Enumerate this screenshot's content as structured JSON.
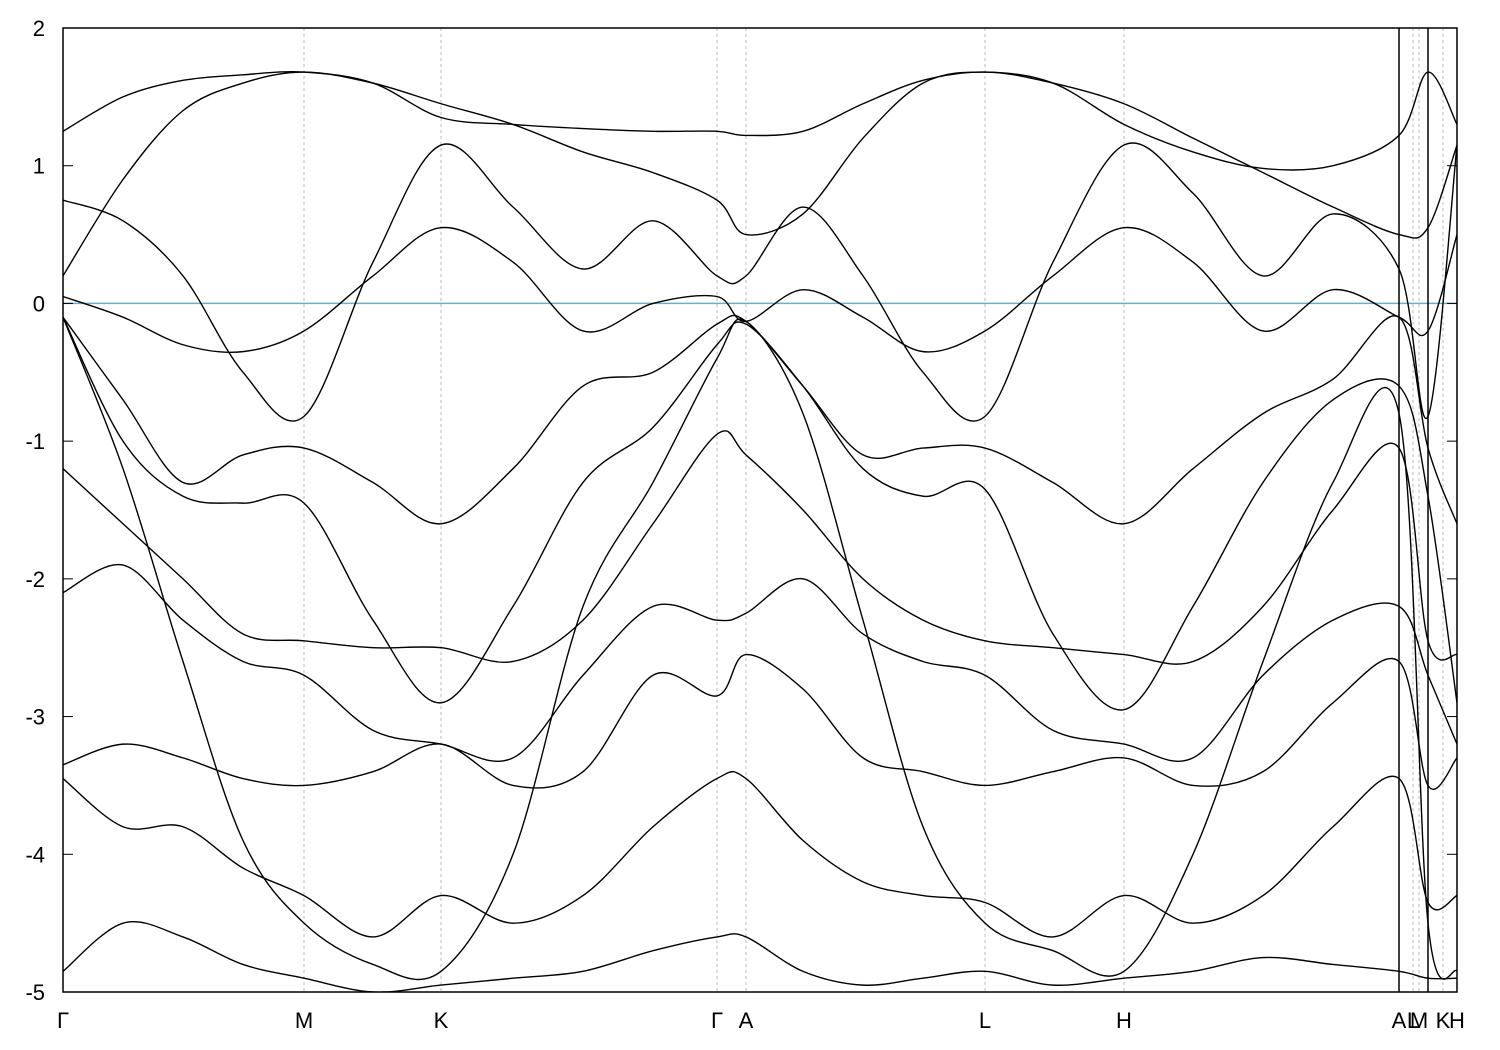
{
  "chart_data": {
    "type": "line",
    "xlim": [
      0,
      13.94
    ],
    "ylim": [
      -5,
      2
    ],
    "yticks": [
      -5,
      -4,
      -3,
      -2,
      -1,
      0,
      1,
      2
    ],
    "xticks": [
      {
        "value": 0,
        "label": "Γ"
      },
      {
        "value": 2.41,
        "label": "M"
      },
      {
        "value": 3.78,
        "label": "K"
      },
      {
        "value": 6.54,
        "label": "Γ"
      },
      {
        "value": 6.83,
        "label": "A"
      },
      {
        "value": 9.22,
        "label": "L"
      },
      {
        "value": 10.61,
        "label": "H"
      },
      {
        "value": 13.36,
        "label": "A"
      },
      {
        "value": 13.5,
        "label": "L"
      },
      {
        "value": 13.56,
        "label": "M"
      },
      {
        "value": 13.8,
        "label": "K"
      },
      {
        "value": 13.94,
        "label": "H"
      }
    ],
    "panel_breaks": [
      13.36,
      13.65
    ],
    "xgrid": true,
    "fermi_level": 0,
    "fermi_color": "#6aaec8",
    "x": [
      0,
      0.6,
      1.2,
      1.8,
      2.41,
      3.1,
      3.78,
      4.5,
      5.2,
      5.9,
      6.54,
      6.83,
      7.4,
      8.0,
      8.6,
      9.22,
      9.9,
      10.61,
      11.3,
      12.0,
      12.7,
      13.36,
      13.65,
      13.94
    ],
    "series": [
      {
        "color": "#000000",
        "values": [
          1.25,
          1.5,
          1.62,
          1.66,
          1.68,
          1.6,
          1.35,
          1.3,
          1.27,
          1.25,
          1.25,
          1.22,
          1.25,
          1.45,
          1.62,
          1.68,
          1.6,
          1.3,
          1.1,
          0.98,
          1.0,
          1.22,
          1.68,
          1.3
        ]
      },
      {
        "color": "#000000",
        "values": [
          0.2,
          0.9,
          1.4,
          1.6,
          1.68,
          1.6,
          1.45,
          1.3,
          1.1,
          0.95,
          0.75,
          0.5,
          0.65,
          1.2,
          1.6,
          1.68,
          1.6,
          1.45,
          1.2,
          0.95,
          0.7,
          0.5,
          0.55,
          1.15
        ]
      },
      {
        "color": "#000000",
        "values": [
          0.75,
          0.6,
          0.2,
          -0.5,
          -0.82,
          0.3,
          1.15,
          0.7,
          0.25,
          0.6,
          0.2,
          0.2,
          0.7,
          0.2,
          -0.5,
          -0.82,
          0.3,
          1.15,
          0.8,
          0.2,
          0.65,
          0.25,
          -0.82,
          1.15
        ]
      },
      {
        "color": "#000000",
        "values": [
          0.05,
          -0.1,
          -0.3,
          -0.35,
          -0.2,
          0.2,
          0.55,
          0.3,
          -0.2,
          0.0,
          0.05,
          -0.13,
          0.1,
          -0.1,
          -0.35,
          -0.2,
          0.2,
          0.55,
          0.3,
          -0.2,
          0.1,
          -0.1,
          -0.2,
          0.5
        ]
      },
      {
        "color": "#000000",
        "values": [
          -0.1,
          -0.7,
          -1.3,
          -1.1,
          -1.05,
          -1.3,
          -1.6,
          -1.2,
          -0.6,
          -0.5,
          -0.15,
          -0.13,
          -0.6,
          -1.1,
          -1.05,
          -1.05,
          -1.3,
          -1.6,
          -1.2,
          -0.8,
          -0.55,
          -0.1,
          -1.05,
          -1.6
        ]
      },
      {
        "color": "#000000",
        "values": [
          -0.1,
          -1.0,
          -1.4,
          -1.45,
          -1.45,
          -2.3,
          -2.9,
          -2.2,
          -1.3,
          -0.9,
          -0.3,
          -0.15,
          -0.6,
          -1.2,
          -1.4,
          -1.35,
          -2.4,
          -2.95,
          -2.2,
          -1.3,
          -0.7,
          -0.6,
          -1.4,
          -2.9
        ]
      },
      {
        "color": "#000000",
        "values": [
          -1.2,
          -1.6,
          -2.0,
          -2.4,
          -2.45,
          -2.5,
          -2.5,
          -2.6,
          -2.3,
          -1.6,
          -0.95,
          -1.1,
          -1.5,
          -2.0,
          -2.3,
          -2.45,
          -2.5,
          -2.55,
          -2.6,
          -2.2,
          -1.5,
          -1.05,
          -2.45,
          -2.55
        ]
      },
      {
        "color": "#000000",
        "values": [
          -2.1,
          -1.9,
          -2.3,
          -2.6,
          -2.7,
          -3.1,
          -3.2,
          -3.3,
          -2.7,
          -2.2,
          -2.3,
          -2.25,
          -2.0,
          -2.4,
          -2.6,
          -2.7,
          -3.1,
          -3.2,
          -3.3,
          -2.7,
          -2.3,
          -2.2,
          -2.7,
          -3.2
        ]
      },
      {
        "color": "#000000",
        "values": [
          -3.35,
          -3.2,
          -3.3,
          -3.45,
          -3.5,
          -3.4,
          -3.2,
          -3.5,
          -3.4,
          -2.7,
          -2.85,
          -2.55,
          -2.8,
          -3.3,
          -3.4,
          -3.5,
          -3.4,
          -3.3,
          -3.5,
          -3.4,
          -2.9,
          -2.6,
          -3.5,
          -3.3
        ]
      },
      {
        "color": "#000000",
        "values": [
          -0.1,
          -1.2,
          -2.6,
          -3.9,
          -4.5,
          -4.8,
          -4.85,
          -4.0,
          -2.2,
          -1.3,
          -0.4,
          -0.13,
          -0.8,
          -2.3,
          -3.8,
          -4.5,
          -4.7,
          -4.85,
          -4.0,
          -2.6,
          -1.3,
          -0.8,
          -4.5,
          -4.85
        ]
      },
      {
        "color": "#000000",
        "values": [
          -3.45,
          -3.8,
          -3.8,
          -4.1,
          -4.3,
          -4.6,
          -4.3,
          -4.5,
          -4.3,
          -3.8,
          -3.45,
          -3.45,
          -3.9,
          -4.2,
          -4.3,
          -4.35,
          -4.6,
          -4.3,
          -4.5,
          -4.3,
          -3.8,
          -3.45,
          -4.35,
          -4.3
        ]
      },
      {
        "color": "#000000",
        "values": [
          -4.85,
          -4.5,
          -4.6,
          -4.8,
          -4.9,
          -5.0,
          -4.95,
          -4.9,
          -4.85,
          -4.7,
          -4.6,
          -4.6,
          -4.85,
          -4.95,
          -4.9,
          -4.85,
          -4.95,
          -4.9,
          -4.85,
          -4.75,
          -4.8,
          -4.85,
          -4.9,
          -4.9
        ]
      }
    ]
  }
}
